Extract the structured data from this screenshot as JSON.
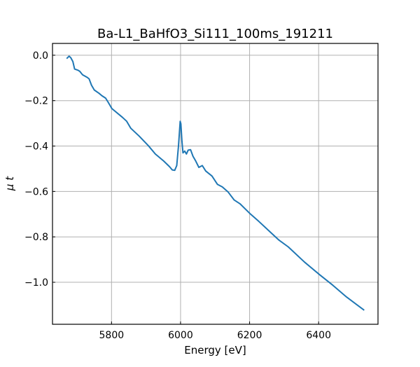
{
  "chart_data": {
    "type": "line",
    "title": "Ba-L1_BaHfO3_Si111_100ms_191211",
    "xlabel": "Energy [eV]",
    "ylabel": "μ t",
    "xlim": [
      5629,
      6572
    ],
    "ylim": [
      -1.185,
      0.052
    ],
    "xticks": [
      5800,
      6000,
      6200,
      6400
    ],
    "xtick_labels": [
      "5800",
      "6000",
      "6200",
      "6400"
    ],
    "yticks": [
      0.0,
      -0.2,
      -0.4,
      -0.6,
      -0.8,
      -1.0
    ],
    "ytick_labels": [
      "0.0",
      "−0.2",
      "−0.4",
      "−0.6",
      "−0.8",
      "−1.0"
    ],
    "grid": true,
    "series": [
      {
        "name": "mu_t",
        "color": "#1f77b4",
        "x": [
          5670,
          5677,
          5682,
          5688,
          5693,
          5703,
          5708,
          5716,
          5730,
          5735,
          5742,
          5750,
          5764,
          5772,
          5783,
          5791,
          5801,
          5832,
          5844,
          5856,
          5880,
          5907,
          5927,
          5951,
          5968,
          5976,
          5983,
          5989,
          5994,
          5999,
          6001,
          6004,
          6007,
          6012,
          6017,
          6022,
          6029,
          6036,
          6044,
          6053,
          6063,
          6073,
          6091,
          6107,
          6121,
          6138,
          6155,
          6172,
          6203,
          6226,
          6284,
          6312,
          6359,
          6403,
          6441,
          6481,
          6532
        ],
        "y": [
          -0.015,
          -0.004,
          -0.011,
          -0.028,
          -0.061,
          -0.066,
          -0.071,
          -0.086,
          -0.098,
          -0.104,
          -0.132,
          -0.153,
          -0.168,
          -0.178,
          -0.189,
          -0.209,
          -0.235,
          -0.274,
          -0.291,
          -0.322,
          -0.356,
          -0.399,
          -0.435,
          -0.466,
          -0.491,
          -0.505,
          -0.507,
          -0.486,
          -0.399,
          -0.291,
          -0.302,
          -0.378,
          -0.43,
          -0.422,
          -0.435,
          -0.418,
          -0.416,
          -0.445,
          -0.466,
          -0.494,
          -0.486,
          -0.51,
          -0.532,
          -0.569,
          -0.58,
          -0.603,
          -0.637,
          -0.654,
          -0.7,
          -0.731,
          -0.813,
          -0.844,
          -0.911,
          -0.967,
          -1.013,
          -1.065,
          -1.123
        ]
      }
    ]
  }
}
